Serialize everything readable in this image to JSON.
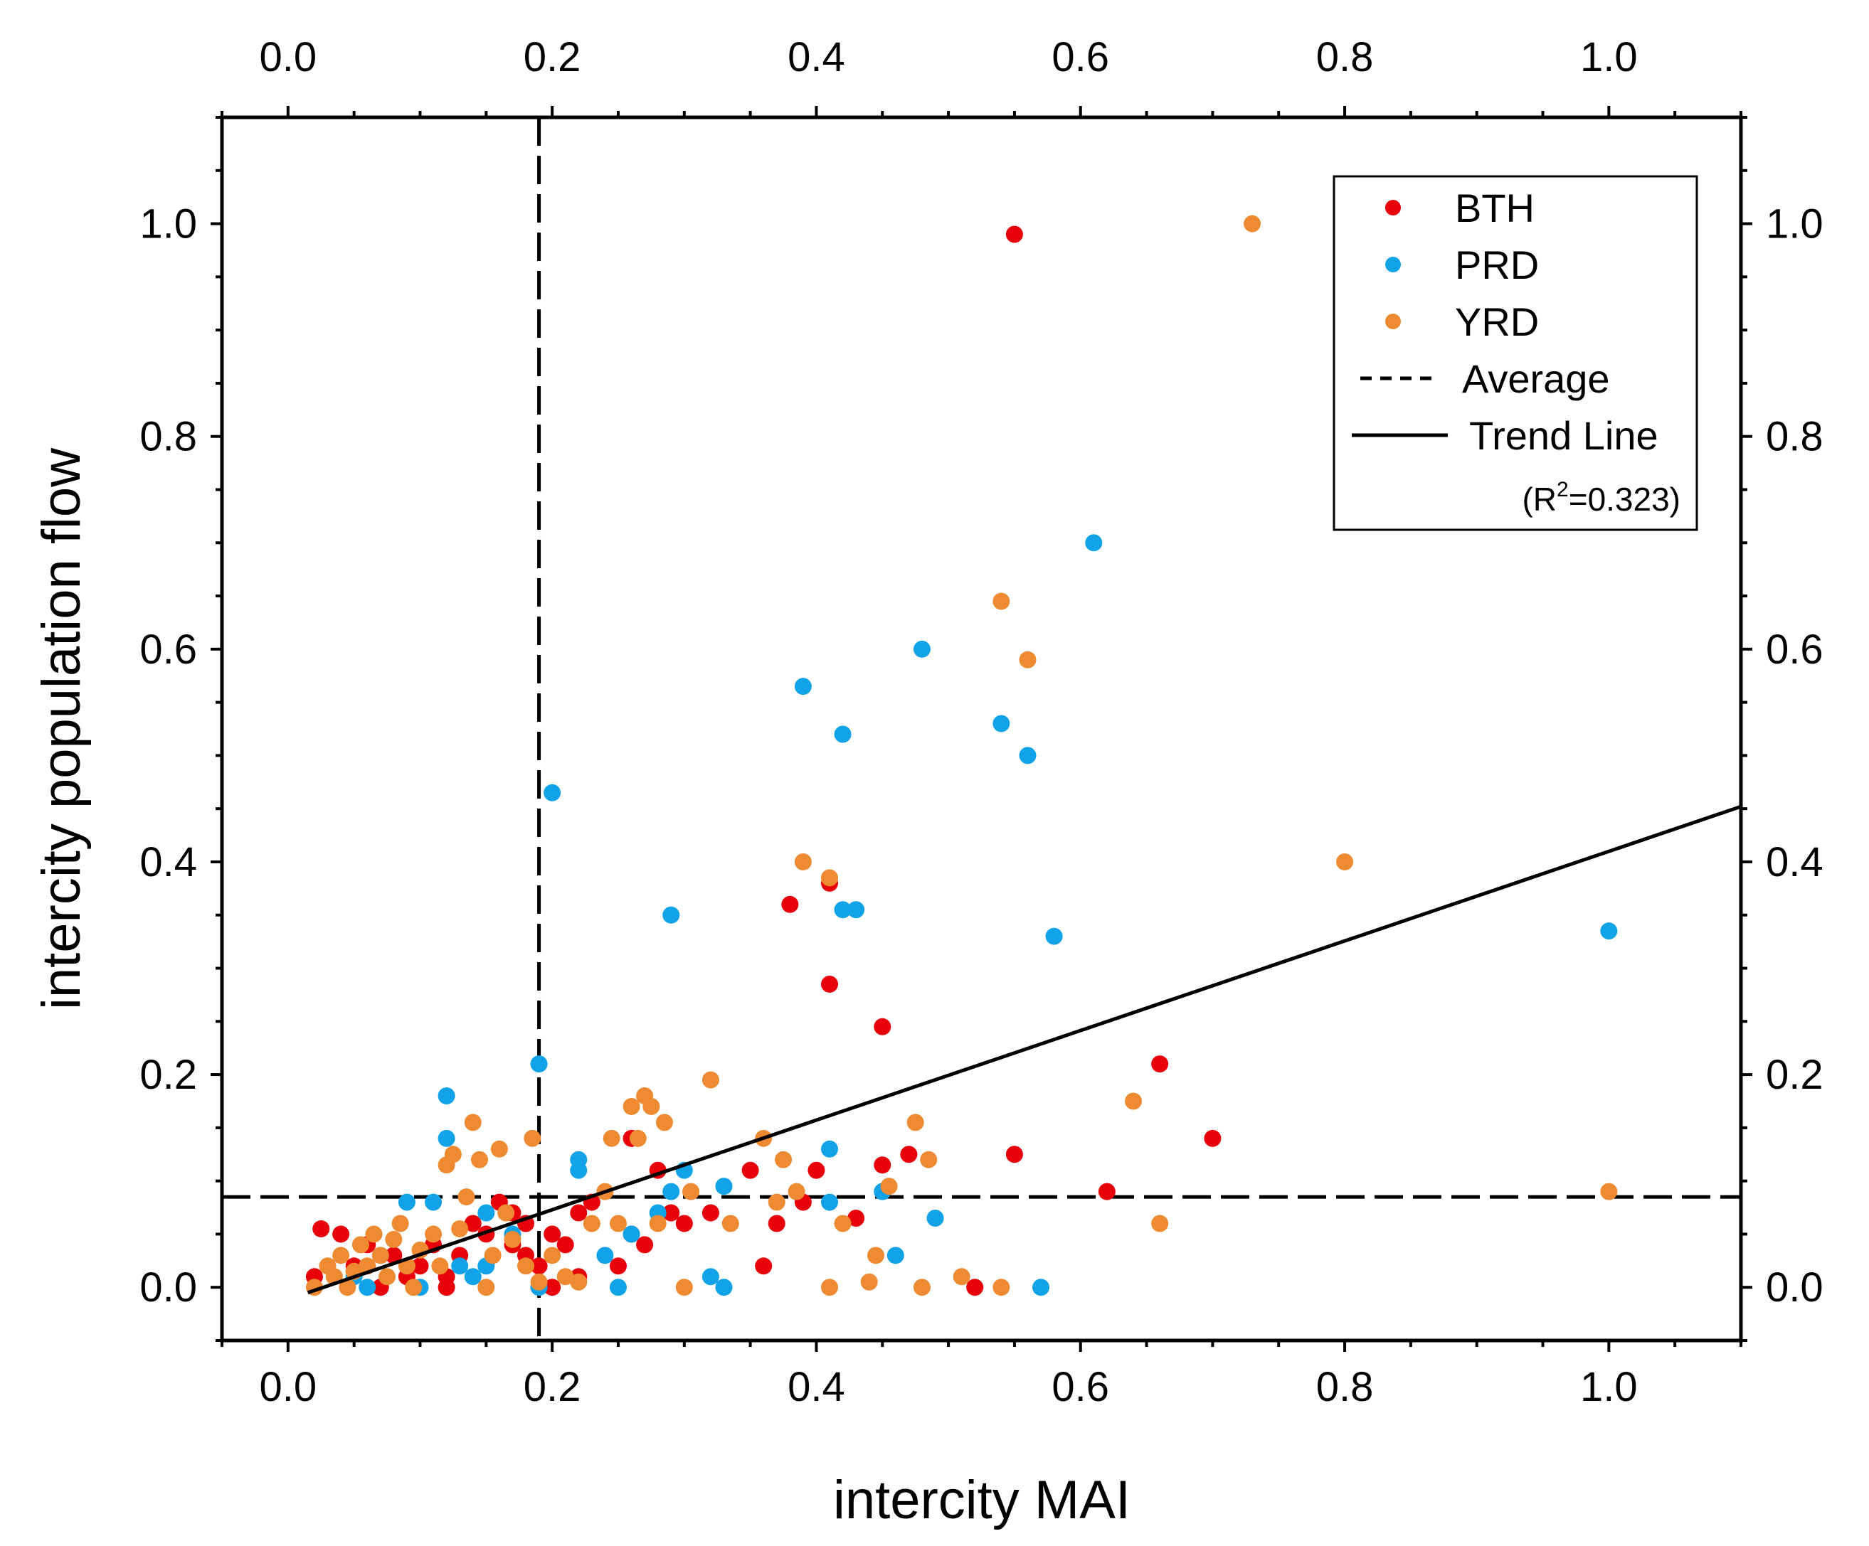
{
  "chart_data": {
    "type": "scatter",
    "xlabel": "intercity MAI",
    "ylabel": "intercity population flow",
    "xlim": [
      -0.05,
      1.1
    ],
    "ylim": [
      -0.05,
      1.1
    ],
    "x_ticks": [
      "0.0",
      "0.2",
      "0.4",
      "0.6",
      "0.8",
      "1.0"
    ],
    "y_ticks": [
      "0.0",
      "0.2",
      "0.4",
      "0.6",
      "0.8",
      "1.0"
    ],
    "grid": false,
    "legend_position": "top-right",
    "series": [
      {
        "name": "BTH",
        "color": "#e8000b",
        "points": [
          [
            0.02,
            0.01
          ],
          [
            0.025,
            0.055
          ],
          [
            0.04,
            0.05
          ],
          [
            0.05,
            0.02
          ],
          [
            0.06,
            0.04
          ],
          [
            0.07,
            0.0
          ],
          [
            0.08,
            0.03
          ],
          [
            0.09,
            0.01
          ],
          [
            0.1,
            0.02
          ],
          [
            0.11,
            0.04
          ],
          [
            0.12,
            0.01
          ],
          [
            0.12,
            0.0
          ],
          [
            0.13,
            0.03
          ],
          [
            0.14,
            0.06
          ],
          [
            0.15,
            0.05
          ],
          [
            0.16,
            0.08
          ],
          [
            0.17,
            0.07
          ],
          [
            0.17,
            0.04
          ],
          [
            0.18,
            0.03
          ],
          [
            0.18,
            0.06
          ],
          [
            0.19,
            0.0
          ],
          [
            0.19,
            0.02
          ],
          [
            0.2,
            0.05
          ],
          [
            0.2,
            0.0
          ],
          [
            0.21,
            0.04
          ],
          [
            0.22,
            0.07
          ],
          [
            0.22,
            0.01
          ],
          [
            0.23,
            0.08
          ],
          [
            0.25,
            0.02
          ],
          [
            0.26,
            0.05
          ],
          [
            0.26,
            0.14
          ],
          [
            0.27,
            0.04
          ],
          [
            0.28,
            0.11
          ],
          [
            0.29,
            0.07
          ],
          [
            0.3,
            0.06
          ],
          [
            0.32,
            0.07
          ],
          [
            0.35,
            0.11
          ],
          [
            0.36,
            0.02
          ],
          [
            0.37,
            0.06
          ],
          [
            0.38,
            0.36
          ],
          [
            0.39,
            0.08
          ],
          [
            0.4,
            0.11
          ],
          [
            0.41,
            0.38
          ],
          [
            0.41,
            0.285
          ],
          [
            0.43,
            0.065
          ],
          [
            0.45,
            0.245
          ],
          [
            0.45,
            0.115
          ],
          [
            0.47,
            0.125
          ],
          [
            0.52,
            0.0
          ],
          [
            0.55,
            0.125
          ],
          [
            0.55,
            0.99
          ],
          [
            0.62,
            0.09
          ],
          [
            0.66,
            0.21
          ],
          [
            0.7,
            0.14
          ]
        ]
      },
      {
        "name": "PRD",
        "color": "#12a2e8",
        "points": [
          [
            0.05,
            0.01
          ],
          [
            0.06,
            0.0
          ],
          [
            0.07,
            0.03
          ],
          [
            0.09,
            0.08
          ],
          [
            0.1,
            0.0
          ],
          [
            0.11,
            0.08
          ],
          [
            0.12,
            0.14
          ],
          [
            0.12,
            0.18
          ],
          [
            0.13,
            0.02
          ],
          [
            0.14,
            0.01
          ],
          [
            0.15,
            0.07
          ],
          [
            0.15,
            0.02
          ],
          [
            0.17,
            0.05
          ],
          [
            0.19,
            0.0
          ],
          [
            0.19,
            0.21
          ],
          [
            0.2,
            0.465
          ],
          [
            0.22,
            0.12
          ],
          [
            0.22,
            0.11
          ],
          [
            0.24,
            0.03
          ],
          [
            0.25,
            0.0
          ],
          [
            0.26,
            0.05
          ],
          [
            0.28,
            0.07
          ],
          [
            0.29,
            0.35
          ],
          [
            0.29,
            0.09
          ],
          [
            0.3,
            0.11
          ],
          [
            0.32,
            0.01
          ],
          [
            0.33,
            0.0
          ],
          [
            0.33,
            0.095
          ],
          [
            0.39,
            0.565
          ],
          [
            0.41,
            0.13
          ],
          [
            0.41,
            0.08
          ],
          [
            0.42,
            0.52
          ],
          [
            0.42,
            0.355
          ],
          [
            0.43,
            0.355
          ],
          [
            0.45,
            0.09
          ],
          [
            0.46,
            0.03
          ],
          [
            0.48,
            0.6
          ],
          [
            0.49,
            0.065
          ],
          [
            0.54,
            0.53
          ],
          [
            0.56,
            0.5
          ],
          [
            0.57,
            0.0
          ],
          [
            0.58,
            0.33
          ],
          [
            0.61,
            0.7
          ],
          [
            1.0,
            0.335
          ]
        ]
      },
      {
        "name": "YRD",
        "color": "#ed8a32",
        "points": [
          [
            0.02,
            0.0
          ],
          [
            0.03,
            0.02
          ],
          [
            0.035,
            0.01
          ],
          [
            0.04,
            0.03
          ],
          [
            0.045,
            0.0
          ],
          [
            0.05,
            0.015
          ],
          [
            0.055,
            0.04
          ],
          [
            0.06,
            0.02
          ],
          [
            0.065,
            0.05
          ],
          [
            0.07,
            0.03
          ],
          [
            0.075,
            0.01
          ],
          [
            0.08,
            0.045
          ],
          [
            0.085,
            0.06
          ],
          [
            0.09,
            0.02
          ],
          [
            0.095,
            0.0
          ],
          [
            0.1,
            0.035
          ],
          [
            0.11,
            0.05
          ],
          [
            0.115,
            0.02
          ],
          [
            0.12,
            0.115
          ],
          [
            0.125,
            0.125
          ],
          [
            0.13,
            0.055
          ],
          [
            0.135,
            0.085
          ],
          [
            0.14,
            0.155
          ],
          [
            0.145,
            0.12
          ],
          [
            0.15,
            0.0
          ],
          [
            0.155,
            0.03
          ],
          [
            0.16,
            0.13
          ],
          [
            0.165,
            0.07
          ],
          [
            0.17,
            0.045
          ],
          [
            0.18,
            0.02
          ],
          [
            0.185,
            0.14
          ],
          [
            0.19,
            0.005
          ],
          [
            0.2,
            0.03
          ],
          [
            0.21,
            0.01
          ],
          [
            0.22,
            0.005
          ],
          [
            0.23,
            0.06
          ],
          [
            0.24,
            0.09
          ],
          [
            0.245,
            0.14
          ],
          [
            0.25,
            0.06
          ],
          [
            0.26,
            0.17
          ],
          [
            0.265,
            0.14
          ],
          [
            0.27,
            0.18
          ],
          [
            0.275,
            0.17
          ],
          [
            0.28,
            0.06
          ],
          [
            0.285,
            0.155
          ],
          [
            0.3,
            0.0
          ],
          [
            0.305,
            0.09
          ],
          [
            0.32,
            0.195
          ],
          [
            0.335,
            0.06
          ],
          [
            0.36,
            0.14
          ],
          [
            0.37,
            0.08
          ],
          [
            0.375,
            0.12
          ],
          [
            0.385,
            0.09
          ],
          [
            0.39,
            0.4
          ],
          [
            0.41,
            0.385
          ],
          [
            0.41,
            0.0
          ],
          [
            0.42,
            0.06
          ],
          [
            0.44,
            0.005
          ],
          [
            0.445,
            0.03
          ],
          [
            0.455,
            0.095
          ],
          [
            0.475,
            0.155
          ],
          [
            0.48,
            0.0
          ],
          [
            0.485,
            0.12
          ],
          [
            0.51,
            0.01
          ],
          [
            0.54,
            0.0
          ],
          [
            0.54,
            0.645
          ],
          [
            0.56,
            0.59
          ],
          [
            0.64,
            0.175
          ],
          [
            0.66,
            0.06
          ],
          [
            0.73,
            1.0
          ],
          [
            0.8,
            0.4
          ],
          [
            1.0,
            0.09
          ]
        ]
      }
    ],
    "average_lines": {
      "x": 0.19,
      "y": 0.085
    },
    "trend_line": {
      "x_start": 0.015,
      "y_start": -0.005,
      "x_end": 1.1,
      "y_end": 0.452,
      "r_squared": "0.323"
    },
    "legend": {
      "entries": [
        "BTH",
        "PRD",
        "YRD",
        "Average",
        "Trend Line"
      ],
      "r2_note_prefix": "(R",
      "r2_note_sup": "2",
      "r2_note_suffix": "=0.323)"
    }
  }
}
